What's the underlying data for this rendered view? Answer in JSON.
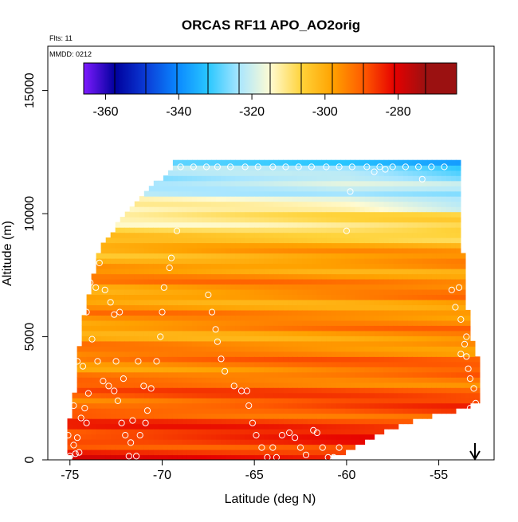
{
  "chart_data": {
    "type": "heatmap",
    "title": "ORCAS RF11 APO_AO2orig",
    "flights_note": "Flts: 11",
    "date_note": "MMDD: 0212",
    "xlabel": "Latitude (deg N)",
    "ylabel": "Altitude (m)",
    "xlim": [
      -76.2,
      -52.0
    ],
    "ylim": [
      0,
      16800
    ],
    "x_ticks": [
      -75,
      -70,
      -65,
      -60,
      -55
    ],
    "x_tick_labels": [
      "-75",
      "-70",
      "-65",
      "-60",
      "-55"
    ],
    "y_ticks": [
      0,
      5000,
      10000,
      15000
    ],
    "y_tick_labels": [
      "0",
      "5000",
      "10000",
      "15000"
    ],
    "colorbar": {
      "ticks": [
        -360,
        -340,
        -320,
        -300,
        -280
      ],
      "tick_labels": [
        "-360",
        "-340",
        "-320",
        "-300",
        "-280"
      ],
      "range": [
        -366,
        -264
      ],
      "colors": [
        "#7e1bff",
        "#00009c",
        "#0b3bd6",
        "#0a88ff",
        "#29c7ff",
        "#a9e6ff",
        "#fffbd2",
        "#ffd33a",
        "#ffa200",
        "#ff5a00",
        "#e60000",
        "#9b1111"
      ]
    },
    "marker_annotation": "arrow at -53.1 deg N pointing to surface",
    "field_summary": "APO values from about -272 near surface to about -325 near 12000 m",
    "sample_points": [
      [
        -72.9,
        11900
      ],
      [
        -72.2,
        11900
      ],
      [
        -71.6,
        11900
      ],
      [
        -70.9,
        11900
      ],
      [
        -70.3,
        11900
      ],
      [
        -69.6,
        11900
      ],
      [
        -69.0,
        11900
      ],
      [
        -68.3,
        11900
      ],
      [
        -67.6,
        11900
      ],
      [
        -67.0,
        11900
      ],
      [
        -66.3,
        11900
      ],
      [
        -65.5,
        11900
      ],
      [
        -64.8,
        11900
      ],
      [
        -64.0,
        11900
      ],
      [
        -63.3,
        11900
      ],
      [
        -62.6,
        11900
      ],
      [
        -61.9,
        11900
      ],
      [
        -61.1,
        11900
      ],
      [
        -60.4,
        11900
      ],
      [
        -59.7,
        11900
      ],
      [
        -58.9,
        11900
      ],
      [
        -58.2,
        11900
      ],
      [
        -57.5,
        11900
      ],
      [
        -56.8,
        11900
      ],
      [
        -56.1,
        11900
      ],
      [
        -55.4,
        11900
      ],
      [
        -54.7,
        11900
      ],
      [
        -58.5,
        11700
      ],
      [
        -57.9,
        11800
      ],
      [
        -55.9,
        11400
      ],
      [
        -59.8,
        10900
      ],
      [
        -60.0,
        9300
      ],
      [
        -69.2,
        9300
      ],
      [
        -69.5,
        8200
      ],
      [
        -69.6,
        7800
      ],
      [
        -69.9,
        7000
      ],
      [
        -70.0,
        6000
      ],
      [
        -70.1,
        5000
      ],
      [
        -70.3,
        4000
      ],
      [
        -67.5,
        6700
      ],
      [
        -67.3,
        6000
      ],
      [
        -67.1,
        5300
      ],
      [
        -67.0,
        4800
      ],
      [
        -66.8,
        4100
      ],
      [
        -66.6,
        3600
      ],
      [
        -66.1,
        3000
      ],
      [
        -65.7,
        2800
      ],
      [
        -65.4,
        2800
      ],
      [
        -65.3,
        2200
      ],
      [
        -65.1,
        1500
      ],
      [
        -64.9,
        1000
      ],
      [
        -64.6,
        500
      ],
      [
        -64.3,
        100
      ],
      [
        -64.0,
        500
      ],
      [
        -63.8,
        100
      ],
      [
        -63.5,
        1000
      ],
      [
        -63.1,
        1100
      ],
      [
        -62.8,
        900
      ],
      [
        -62.5,
        500
      ],
      [
        -62.2,
        200
      ],
      [
        -61.8,
        1200
      ],
      [
        -61.6,
        1100
      ],
      [
        -61.3,
        500
      ],
      [
        -61.0,
        100
      ],
      [
        -60.7,
        100
      ],
      [
        -60.4,
        500
      ],
      [
        -73.4,
        8000
      ],
      [
        -73.9,
        7200
      ],
      [
        -73.6,
        7000
      ],
      [
        -73.1,
        6900
      ],
      [
        -72.8,
        6400
      ],
      [
        -72.6,
        5900
      ],
      [
        -72.3,
        6000
      ],
      [
        -74.1,
        6000
      ],
      [
        -73.8,
        4900
      ],
      [
        -73.5,
        4000
      ],
      [
        -73.2,
        3200
      ],
      [
        -72.9,
        3000
      ],
      [
        -72.6,
        2800
      ],
      [
        -72.4,
        2400
      ],
      [
        -72.2,
        1500
      ],
      [
        -72.0,
        1000
      ],
      [
        -71.7,
        700
      ],
      [
        -71.4,
        150
      ],
      [
        -71.8,
        150
      ],
      [
        -71.6,
        1600
      ],
      [
        -71.2,
        1000
      ],
      [
        -70.9,
        1500
      ],
      [
        -71.3,
        4000
      ],
      [
        -71.0,
        3000
      ],
      [
        -70.8,
        2000
      ],
      [
        -70.6,
        2900
      ],
      [
        -72.1,
        3300
      ],
      [
        -72.5,
        4000
      ],
      [
        -74.6,
        4000
      ],
      [
        -74.9,
        3000
      ],
      [
        -74.3,
        3800
      ],
      [
        -74.2,
        2100
      ],
      [
        -74.4,
        1700
      ],
      [
        -74.6,
        900
      ],
      [
        -74.8,
        600
      ],
      [
        -75.0,
        150
      ],
      [
        -74.7,
        250
      ],
      [
        -74.5,
        300
      ],
      [
        -74.1,
        1500
      ],
      [
        -74.0,
        2700
      ],
      [
        -74.8,
        2200
      ],
      [
        -75.1,
        1000
      ],
      [
        -54.3,
        6900
      ],
      [
        -53.9,
        7000
      ],
      [
        -54.1,
        6200
      ],
      [
        -53.8,
        5700
      ],
      [
        -53.5,
        5000
      ],
      [
        -53.6,
        4700
      ],
      [
        -53.8,
        4300
      ],
      [
        -53.4,
        3700
      ],
      [
        -53.3,
        3300
      ],
      [
        -53.1,
        2900
      ],
      [
        -53.0,
        2300
      ],
      [
        -53.3,
        2100
      ],
      [
        -53.5,
        4200
      ]
    ]
  }
}
